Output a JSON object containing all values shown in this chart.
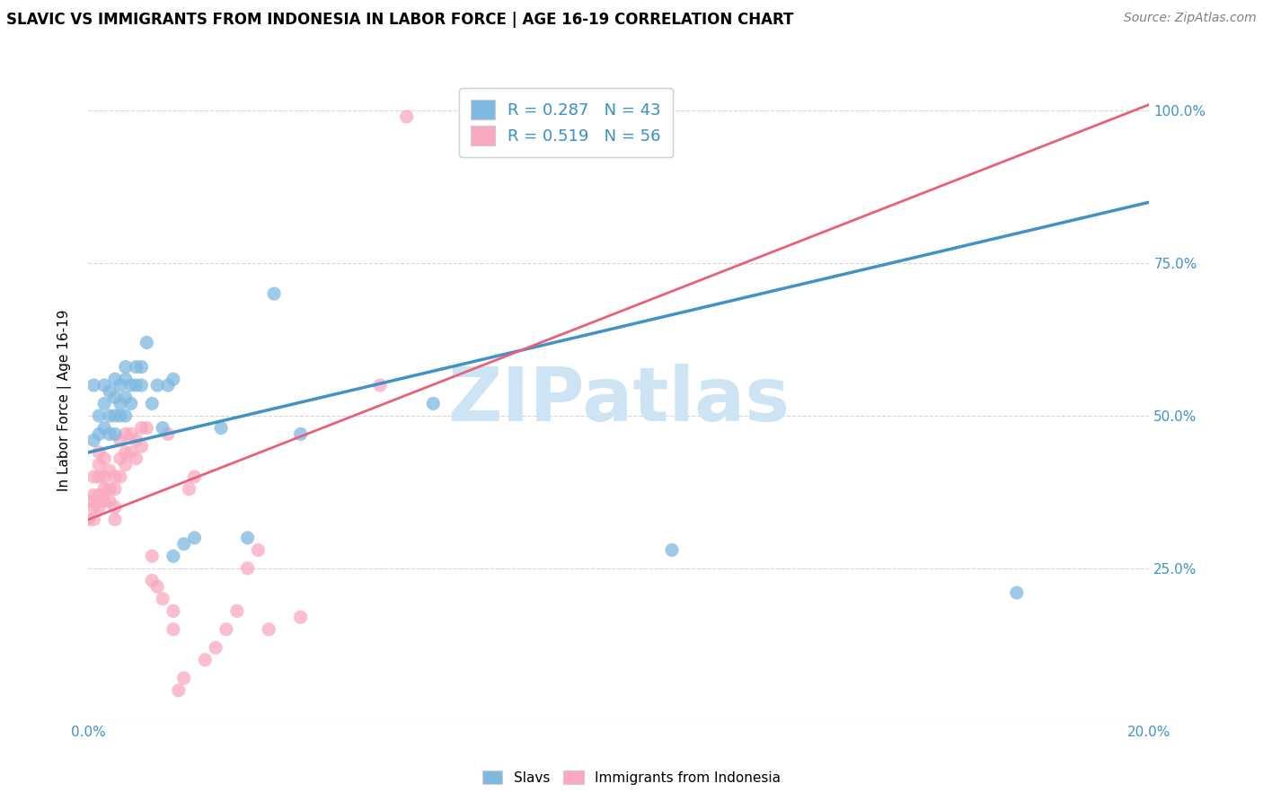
{
  "title": "SLAVIC VS IMMIGRANTS FROM INDONESIA IN LABOR FORCE | AGE 16-19 CORRELATION CHART",
  "source": "Source: ZipAtlas.com",
  "ylabel": "In Labor Force | Age 16-19",
  "xlim": [
    0.0,
    0.2
  ],
  "ylim": [
    0.0,
    1.05
  ],
  "blue_color": "#7fb9e0",
  "pink_color": "#f9a8c0",
  "blue_line_color": "#4292c6",
  "pink_line_color": "#e8607a",
  "legend_blue_label": "R = 0.287   N = 43",
  "legend_pink_label": "R = 0.519   N = 56",
  "watermark": "ZIPatlas",
  "watermark_color": "#cde4f5",
  "slavs_x": [
    0.001,
    0.001,
    0.002,
    0.002,
    0.003,
    0.003,
    0.003,
    0.004,
    0.004,
    0.004,
    0.005,
    0.005,
    0.005,
    0.005,
    0.006,
    0.006,
    0.006,
    0.007,
    0.007,
    0.007,
    0.007,
    0.008,
    0.008,
    0.009,
    0.009,
    0.01,
    0.01,
    0.011,
    0.012,
    0.013,
    0.014,
    0.015,
    0.016,
    0.016,
    0.018,
    0.02,
    0.025,
    0.03,
    0.035,
    0.04,
    0.065,
    0.11,
    0.175
  ],
  "slavs_y": [
    0.46,
    0.55,
    0.47,
    0.5,
    0.48,
    0.52,
    0.55,
    0.47,
    0.5,
    0.54,
    0.47,
    0.5,
    0.53,
    0.56,
    0.5,
    0.52,
    0.55,
    0.5,
    0.53,
    0.56,
    0.58,
    0.52,
    0.55,
    0.55,
    0.58,
    0.55,
    0.58,
    0.62,
    0.52,
    0.55,
    0.48,
    0.55,
    0.56,
    0.27,
    0.29,
    0.3,
    0.48,
    0.3,
    0.7,
    0.47,
    0.52,
    0.28,
    0.21
  ],
  "indo_x": [
    0.0,
    0.0,
    0.001,
    0.001,
    0.001,
    0.001,
    0.002,
    0.002,
    0.002,
    0.002,
    0.002,
    0.003,
    0.003,
    0.003,
    0.003,
    0.004,
    0.004,
    0.004,
    0.005,
    0.005,
    0.005,
    0.005,
    0.006,
    0.006,
    0.006,
    0.007,
    0.007,
    0.007,
    0.008,
    0.008,
    0.009,
    0.009,
    0.01,
    0.01,
    0.011,
    0.012,
    0.012,
    0.013,
    0.014,
    0.015,
    0.016,
    0.016,
    0.017,
    0.018,
    0.019,
    0.02,
    0.022,
    0.024,
    0.026,
    0.028,
    0.03,
    0.032,
    0.034,
    0.04,
    0.055,
    0.06
  ],
  "indo_y": [
    0.33,
    0.36,
    0.33,
    0.35,
    0.37,
    0.4,
    0.35,
    0.37,
    0.4,
    0.42,
    0.44,
    0.36,
    0.38,
    0.4,
    0.43,
    0.36,
    0.38,
    0.41,
    0.33,
    0.35,
    0.38,
    0.4,
    0.4,
    0.43,
    0.46,
    0.42,
    0.44,
    0.47,
    0.44,
    0.47,
    0.43,
    0.46,
    0.45,
    0.48,
    0.48,
    0.23,
    0.27,
    0.22,
    0.2,
    0.47,
    0.15,
    0.18,
    0.05,
    0.07,
    0.38,
    0.4,
    0.1,
    0.12,
    0.15,
    0.18,
    0.25,
    0.28,
    0.15,
    0.17,
    0.55,
    0.99
  ]
}
